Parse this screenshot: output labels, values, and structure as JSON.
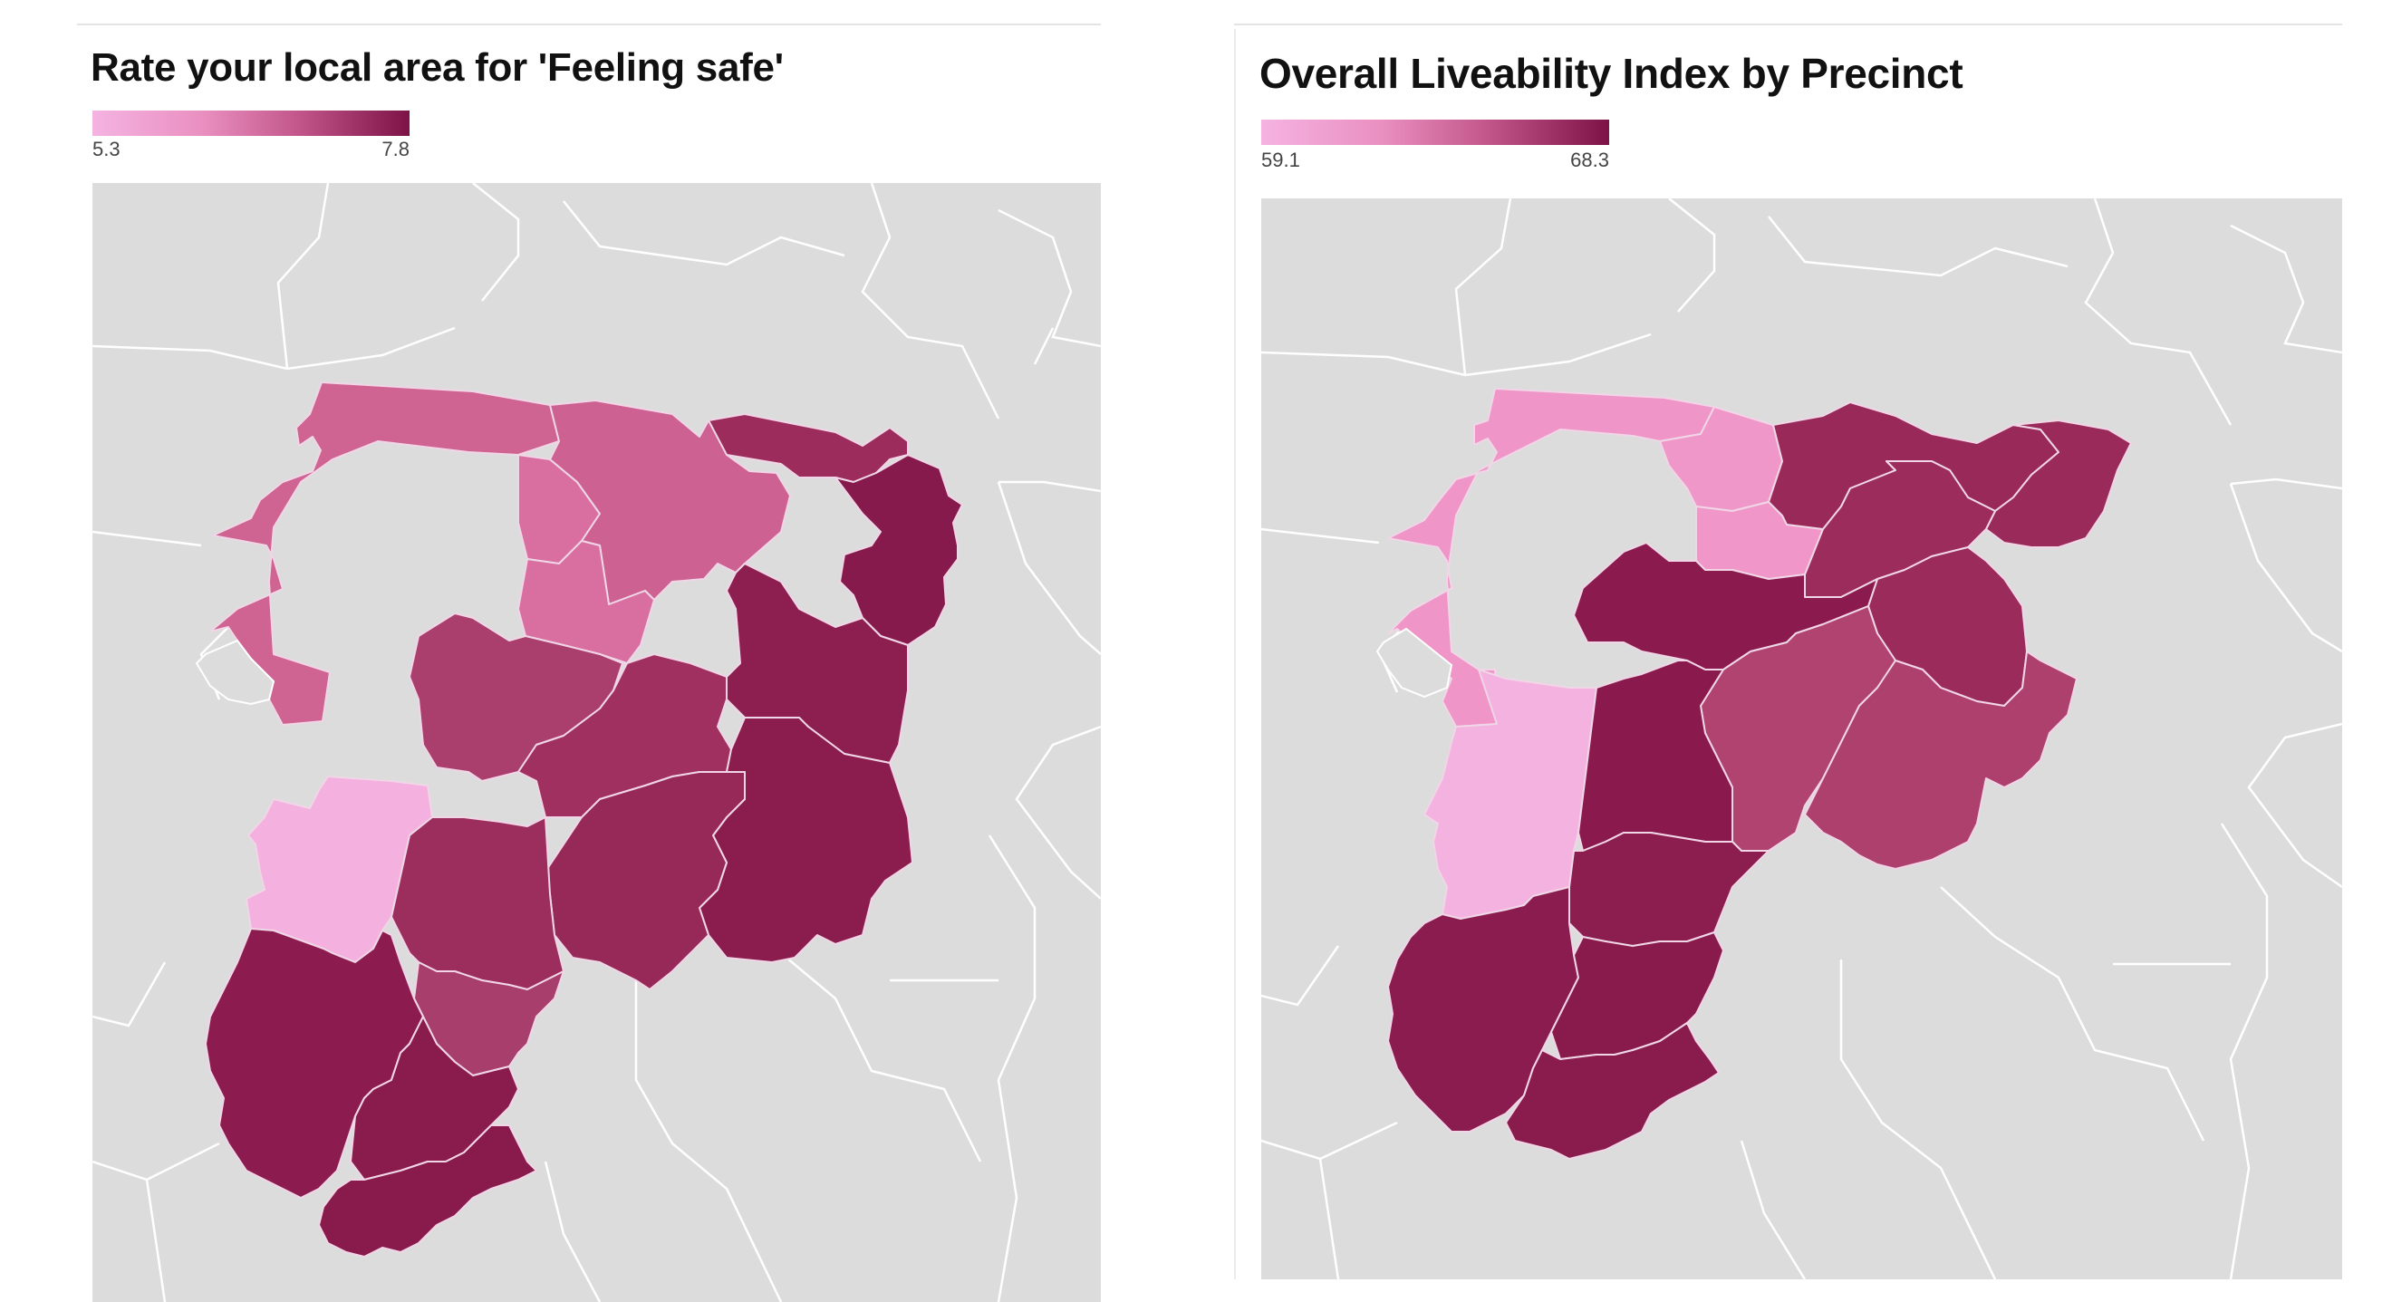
{
  "panels": [
    {
      "title": "Rate your local area for 'Feeling safe'",
      "legend": {
        "min": "5.3",
        "max": "7.8",
        "color_low": "#f5b3e2",
        "color_high": "#7d1247"
      },
      "regions": [
        {
          "name": "north-west",
          "value": 6.6
        },
        {
          "name": "north-centre",
          "value": 6.7
        },
        {
          "name": "north-mid",
          "value": 6.9
        },
        {
          "name": "north-east-strip",
          "value": 7.5
        },
        {
          "name": "far-east",
          "value": 7.8
        },
        {
          "name": "centre-west",
          "value": 7.0
        },
        {
          "name": "centre",
          "value": 7.4
        },
        {
          "name": "centre-east",
          "value": 7.7
        },
        {
          "name": "east",
          "value": 7.5
        },
        {
          "name": "south-east",
          "value": 7.5
        },
        {
          "name": "west-pale",
          "value": 5.3
        },
        {
          "name": "mid-south",
          "value": 7.1
        },
        {
          "name": "lower-mid",
          "value": 7.2
        },
        {
          "name": "south-west",
          "value": 7.8
        },
        {
          "name": "south-centre",
          "value": 7.8
        },
        {
          "name": "south",
          "value": 7.8
        }
      ]
    },
    {
      "title": "Overall Liveability Index by Precinct",
      "legend": {
        "min": "59.1",
        "max": "68.3",
        "color_low": "#f5b3e2",
        "color_high": "#7d1247"
      },
      "regions": [
        {
          "name": "north-west",
          "value": 61.5
        },
        {
          "name": "north-centre",
          "value": 61.5
        },
        {
          "name": "centre-north",
          "value": 61.5
        },
        {
          "name": "north-east",
          "value": 67.0
        },
        {
          "name": "far-east",
          "value": 67.0
        },
        {
          "name": "east-mid",
          "value": 67.0
        },
        {
          "name": "east",
          "value": 67.0
        },
        {
          "name": "centre-dark",
          "value": 68.3
        },
        {
          "name": "centre-south-dark",
          "value": 68.3
        },
        {
          "name": "centre-mid",
          "value": 65.3
        },
        {
          "name": "south-east",
          "value": 65.3
        },
        {
          "name": "west-pale",
          "value": 59.1
        },
        {
          "name": "lower-mid",
          "value": 68.3
        },
        {
          "name": "south-west",
          "value": 68.3
        },
        {
          "name": "south-centre",
          "value": 68.3
        },
        {
          "name": "south",
          "value": 68.3
        }
      ]
    }
  ]
}
